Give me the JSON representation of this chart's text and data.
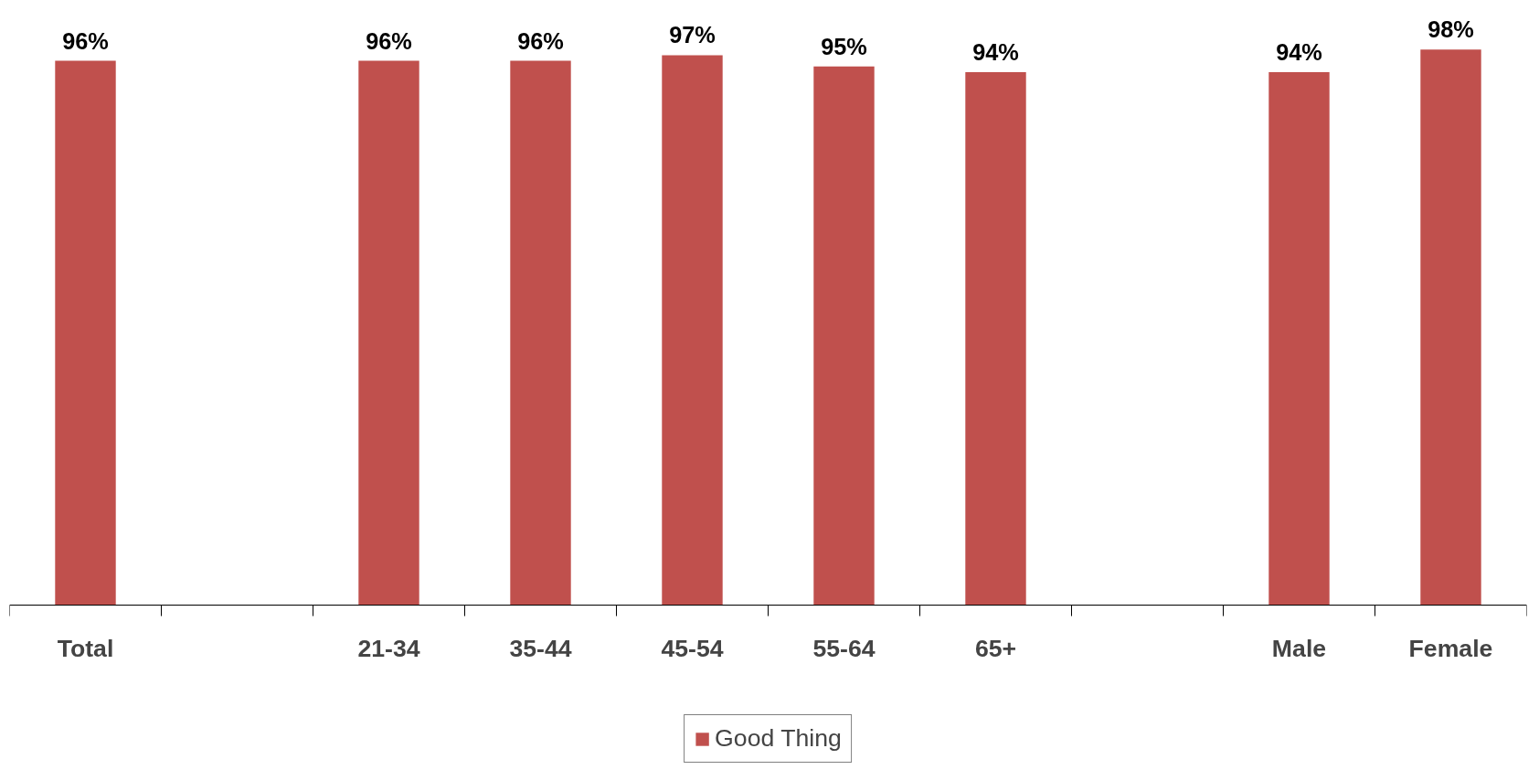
{
  "chart_data": {
    "type": "bar",
    "categories": [
      "Total",
      null,
      "21-34",
      "35-44",
      "45-54",
      "55-64",
      "65+",
      null,
      "Male",
      "Female"
    ],
    "series": [
      {
        "name": "Good Thing",
        "color": "#c0504d",
        "values": [
          96,
          null,
          96,
          96,
          97,
          95,
          94,
          null,
          94,
          98
        ],
        "value_labels": [
          "96%",
          null,
          "96%",
          "96%",
          "97%",
          "95%",
          "94%",
          null,
          "94%",
          "98%"
        ]
      }
    ],
    "grid": false,
    "legend": "bottom"
  }
}
